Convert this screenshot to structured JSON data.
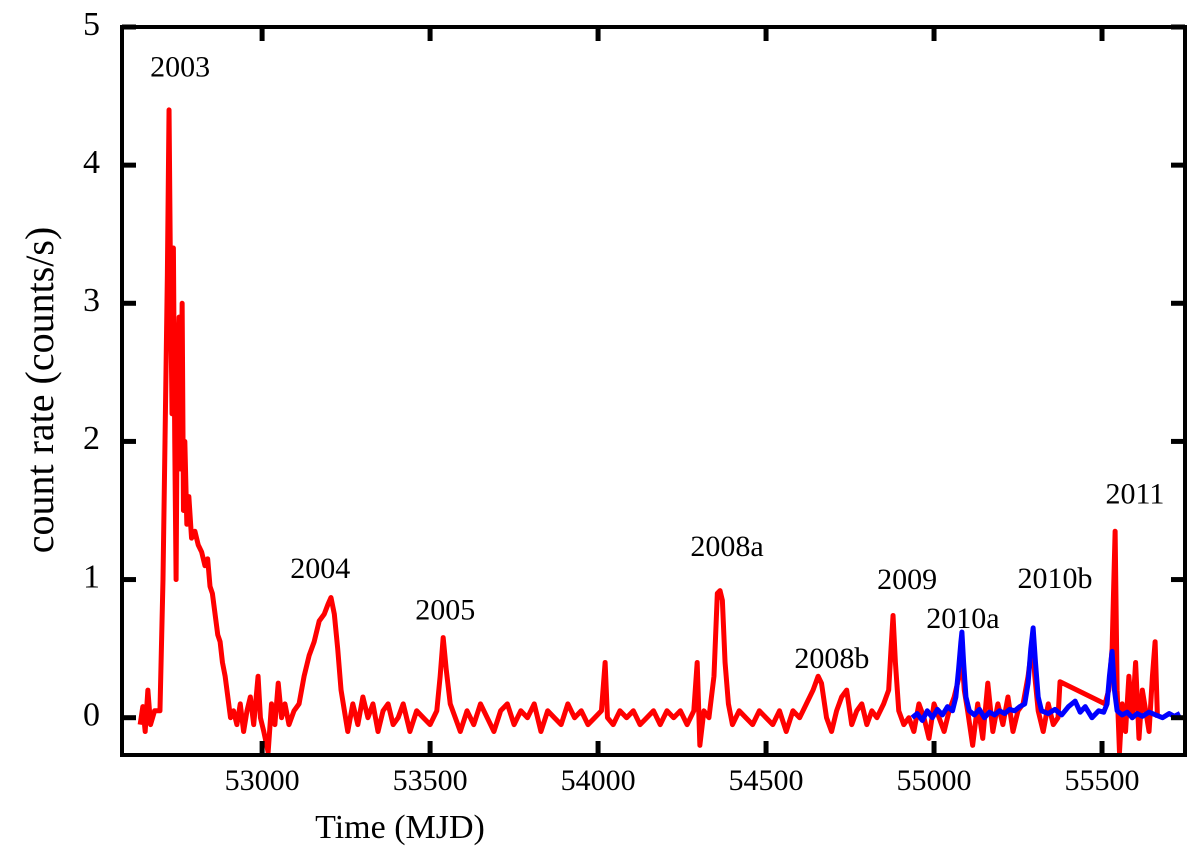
{
  "chart_data": {
    "type": "line",
    "x_label": "Time (MJD)",
    "y_label": "count rate (counts/s)",
    "xlim": [
      52583,
      55747
    ],
    "ylim": [
      -0.27,
      5
    ],
    "xticks": [
      53000,
      53500,
      54000,
      54500,
      55000,
      55500
    ],
    "yticks": [
      0,
      1,
      2,
      3,
      4,
      5
    ],
    "annotations": [
      {
        "text": "2003",
        "x": 52756,
        "y": 4.69
      },
      {
        "text": "2004",
        "x": 53173,
        "y": 1.06
      },
      {
        "text": "2005",
        "x": 53545,
        "y": 0.76
      },
      {
        "text": "2008a",
        "x": 54384,
        "y": 1.22
      },
      {
        "text": "2008b",
        "x": 54696,
        "y": 0.41
      },
      {
        "text": "2009",
        "x": 54920,
        "y": 0.98
      },
      {
        "text": "2010a",
        "x": 55086,
        "y": 0.7
      },
      {
        "text": "2010b",
        "x": 55360,
        "y": 0.99
      },
      {
        "text": "2011",
        "x": 55598,
        "y": 1.6
      }
    ],
    "series": [
      {
        "color": "#ff0000",
        "x": [
          52637,
          52645,
          52652,
          52660,
          52668,
          52680,
          52696,
          52705,
          52711,
          52718,
          52723,
          52728,
          52732,
          52736,
          52740,
          52744,
          52748,
          52753,
          52757,
          52762,
          52766,
          52770,
          52776,
          52782,
          52790,
          52800,
          52810,
          52820,
          52830,
          52838,
          52845,
          52852,
          52860,
          52868,
          52875,
          52882,
          52890,
          52898,
          52906,
          52915,
          52925,
          52935,
          52945,
          52955,
          52965,
          52975,
          52988,
          52995,
          53005,
          53018,
          53028,
          53038,
          53048,
          53058,
          53068,
          53080,
          53095,
          53110,
          53125,
          53140,
          53155,
          53170,
          53185,
          53196,
          53205,
          53215,
          53225,
          53235,
          53245,
          53255,
          53270,
          53285,
          53300,
          53315,
          53330,
          53345,
          53360,
          53375,
          53390,
          53405,
          53420,
          53440,
          53460,
          53480,
          53500,
          53520,
          53530,
          53539,
          53548,
          53560,
          53575,
          53590,
          53610,
          53630,
          53650,
          53670,
          53690,
          53710,
          53730,
          53750,
          53770,
          53790,
          53810,
          53830,
          53850,
          53870,
          53890,
          53910,
          53930,
          53950,
          53970,
          53990,
          54010,
          54021,
          54028,
          54045,
          54065,
          54085,
          54105,
          54125,
          54145,
          54165,
          54185,
          54205,
          54225,
          54245,
          54265,
          54285,
          54295,
          54303,
          54315,
          54330,
          54345,
          54355,
          54363,
          54370,
          54378,
          54388,
          54400,
          54420,
          54440,
          54460,
          54480,
          54500,
          54520,
          54540,
          54560,
          54580,
          54600,
          54620,
          54640,
          54655,
          54665,
          54680,
          54695,
          54710,
          54725,
          54740,
          54755,
          54770,
          54785,
          54800,
          54815,
          54830,
          54850,
          54865,
          54872,
          54878,
          54885,
          54895,
          54910,
          54925,
          54940,
          54955,
          54970,
          54985,
          55000,
          55015,
          55030,
          55045,
          55060,
          55075,
          55083,
          55090,
          55100,
          55115,
          55130,
          55145,
          55160,
          55175,
          55190,
          55205,
          55220,
          55235,
          55250,
          55265,
          55280,
          55293,
          55300,
          55310,
          55325,
          55340,
          55355,
          55369,
          55375,
          55509,
          55520,
          55530,
          55539,
          55545,
          55552,
          55560,
          55570,
          55580,
          55590,
          55600,
          55610,
          55620,
          55630,
          55640,
          55650,
          55658,
          55665
        ],
        "values": [
          -0.05,
          0.08,
          -0.1,
          0.2,
          -0.05,
          0.05,
          0.05,
          1.0,
          2.0,
          3.2,
          4.4,
          3.0,
          2.2,
          3.4,
          2.0,
          1.0,
          2.5,
          2.9,
          1.8,
          3.0,
          1.5,
          2.0,
          1.4,
          1.6,
          1.3,
          1.35,
          1.25,
          1.2,
          1.1,
          1.15,
          0.95,
          0.9,
          0.75,
          0.6,
          0.55,
          0.4,
          0.3,
          0.15,
          0.0,
          0.05,
          -0.05,
          0.1,
          -0.1,
          0.05,
          0.15,
          -0.05,
          0.3,
          0.0,
          -0.1,
          -0.25,
          0.1,
          -0.05,
          0.25,
          0.0,
          0.1,
          -0.05,
          0.05,
          0.1,
          0.3,
          0.45,
          0.55,
          0.7,
          0.75,
          0.82,
          0.87,
          0.75,
          0.5,
          0.2,
          0.05,
          -0.1,
          0.1,
          -0.05,
          0.15,
          0.0,
          0.1,
          -0.1,
          0.05,
          0.1,
          -0.05,
          0.0,
          0.1,
          -0.1,
          0.05,
          0.0,
          -0.05,
          0.05,
          0.3,
          0.58,
          0.35,
          0.1,
          0.0,
          -0.1,
          0.05,
          -0.05,
          0.1,
          0.0,
          -0.1,
          0.05,
          0.1,
          -0.05,
          0.05,
          0.0,
          0.1,
          -0.1,
          0.05,
          0.0,
          -0.05,
          0.1,
          0.0,
          0.05,
          -0.05,
          0.0,
          0.05,
          0.4,
          0.0,
          -0.05,
          0.05,
          0.0,
          0.05,
          -0.05,
          0.0,
          0.05,
          -0.05,
          0.05,
          0.0,
          0.05,
          -0.05,
          0.05,
          0.4,
          -0.2,
          0.05,
          0.0,
          0.3,
          0.9,
          0.92,
          0.85,
          0.4,
          0.1,
          -0.05,
          0.05,
          0.0,
          -0.05,
          0.05,
          0.0,
          -0.05,
          0.05,
          -0.1,
          0.05,
          0.0,
          0.1,
          0.2,
          0.3,
          0.25,
          0.0,
          -0.1,
          0.05,
          0.15,
          0.2,
          -0.05,
          0.05,
          0.1,
          -0.05,
          0.05,
          0.0,
          0.1,
          0.2,
          0.5,
          0.74,
          0.4,
          0.05,
          -0.05,
          0.0,
          -0.1,
          0.1,
          0.0,
          -0.15,
          0.1,
          0.0,
          -0.1,
          0.05,
          0.15,
          0.3,
          0.45,
          0.2,
          0.05,
          -0.2,
          0.1,
          -0.15,
          0.25,
          -0.1,
          0.1,
          -0.05,
          0.15,
          -0.1,
          0.05,
          0.1,
          0.3,
          0.55,
          0.3,
          0.05,
          -0.1,
          0.1,
          -0.05,
          0.0,
          0.26,
          0.1,
          0.2,
          0.5,
          1.35,
          0.2,
          -0.25,
          0.1,
          -0.1,
          0.3,
          0.0,
          0.4,
          -0.15,
          0.2,
          0.05,
          -0.1,
          0.3,
          0.55,
          0.0
        ]
      },
      {
        "color": "#0000ff",
        "x": [
          54935,
          54950,
          54965,
          54980,
          54995,
          55010,
          55025,
          55040,
          55055,
          55065,
          55073,
          55080,
          55083,
          55088,
          55095,
          55105,
          55120,
          55135,
          55150,
          55165,
          55180,
          55195,
          55210,
          55225,
          55240,
          55255,
          55270,
          55280,
          55288,
          55295,
          55302,
          55310,
          55320,
          55340,
          55360,
          55380,
          55400,
          55420,
          55435,
          55450,
          55470,
          55490,
          55505,
          55515,
          55522,
          55530,
          55537,
          55545,
          55560,
          55575,
          55590,
          55605,
          55620,
          55640,
          55660,
          55680,
          55700,
          55715,
          55732
        ],
        "values": [
          0.0,
          0.03,
          -0.02,
          0.05,
          0.0,
          0.06,
          0.02,
          0.08,
          0.05,
          0.15,
          0.35,
          0.55,
          0.62,
          0.4,
          0.15,
          0.05,
          0.02,
          0.06,
          0.0,
          0.04,
          0.02,
          0.05,
          0.03,
          0.06,
          0.05,
          0.08,
          0.1,
          0.25,
          0.5,
          0.65,
          0.4,
          0.15,
          0.05,
          0.03,
          0.06,
          0.02,
          0.08,
          0.12,
          0.04,
          0.08,
          0.0,
          0.05,
          0.04,
          0.1,
          0.3,
          0.48,
          0.2,
          0.05,
          0.02,
          0.04,
          0.0,
          0.03,
          0.01,
          0.04,
          0.02,
          0.0,
          0.03,
          0.01,
          0.03
        ]
      }
    ]
  }
}
